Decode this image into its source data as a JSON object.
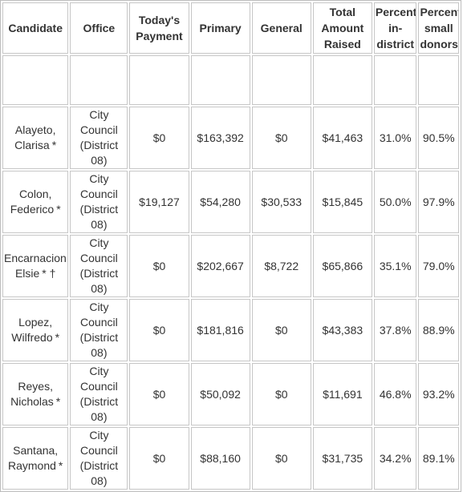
{
  "headers": [
    "Candidate",
    "Office",
    "Today's Payment",
    "Primary",
    "General",
    "Total Amount Raised",
    "Percent in-district",
    "Percent small donors"
  ],
  "rows": [
    {
      "last": "Alayeto,",
      "first": "Clarisa",
      "marks": "*",
      "office": "City Council (District 08)",
      "payment": "$0",
      "primary": "$163,392",
      "general": "$0",
      "total": "$41,463",
      "in_district": "31.0%",
      "small_donors": "90.5%"
    },
    {
      "last": "Colon,",
      "first": "Federico",
      "marks": "*",
      "office": "City Council (District 08)",
      "payment": "$19,127",
      "primary": "$54,280",
      "general": "$30,533",
      "total": "$15,845",
      "in_district": "50.0%",
      "small_donors": "97.9%"
    },
    {
      "last": "Encarnacion,",
      "first": "Elsie",
      "marks": "* †",
      "office": "City Council (District 08)",
      "payment": "$0",
      "primary": "$202,667",
      "general": "$8,722",
      "total": "$65,866",
      "in_district": "35.1%",
      "small_donors": "79.0%"
    },
    {
      "last": "Lopez,",
      "first": "Wilfredo",
      "marks": "*",
      "office": "City Council (District 08)",
      "payment": "$0",
      "primary": "$181,816",
      "general": "$0",
      "total": "$43,383",
      "in_district": "37.8%",
      "small_donors": "88.9%"
    },
    {
      "last": "Reyes,",
      "first": "Nicholas",
      "marks": "*",
      "office": "City Council (District 08)",
      "payment": "$0",
      "primary": "$50,092",
      "general": "$0",
      "total": "$11,691",
      "in_district": "46.8%",
      "small_donors": "93.2%"
    },
    {
      "last": "Santana,",
      "first": "Raymond",
      "marks": "*",
      "office": "City Council (District 08)",
      "payment": "$0",
      "primary": "$88,160",
      "general": "$0",
      "total": "$31,735",
      "in_district": "34.2%",
      "small_donors": "89.1%"
    }
  ]
}
